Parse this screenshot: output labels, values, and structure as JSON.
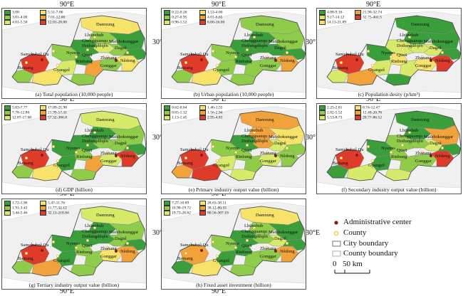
{
  "grid": {
    "lon_label": "90°E",
    "lat_label": "30°E"
  },
  "place_names": {
    "damxung": "Damxung",
    "lhunzhub": "Lhünzhub",
    "chengguan": "Chengguanqu",
    "maizho": "Maizhokunggar",
    "doilung": "Doilungdêqên",
    "dagze": "Dagzê",
    "samzhub": "Samzhubzê Qu",
    "nyemo": "Nyemo",
    "qusu": "Qüxü",
    "zhanang": "Zhanang",
    "nedong": "Nêdong",
    "rinbung": "Rinbung",
    "gonggar": "Gonggar",
    "bainang": "Bainang",
    "gyangze": "Gyangzê"
  },
  "panels": [
    {
      "caption": "(a) Total population (10,000 people)",
      "legend": [
        {
          "label": "3.00",
          "color": "#3a9e3a"
        },
        {
          "label": "3.01-4.00",
          "color": "#8fcc4a"
        },
        {
          "label": "4.01-5.50",
          "color": "#d8ea6a"
        },
        {
          "label": "5.51-7.00",
          "color": "#f7e36a"
        },
        {
          "label": "7.01-12.00",
          "color": "#f2a23a"
        },
        {
          "label": "12.01-28.00",
          "color": "#de3b2a"
        }
      ],
      "region_colors": {
        "damxung": 3,
        "lhunzhub": 1,
        "chengguan": 2,
        "maizho": 0,
        "doilung": 0,
        "dagze": 1,
        "samzhub": 5,
        "nyemo": 1,
        "qusu": 0,
        "zhanang": 1,
        "nedong": 3,
        "rinbung": 2,
        "gonggar": 4,
        "bainang": 1,
        "gyangze": 3,
        "east1": 0,
        "east2": 1
      }
    },
    {
      "caption": "(b) Urban population (10,000 people)",
      "legend": [
        {
          "label": "0.22-0.26",
          "color": "#3a9e3a"
        },
        {
          "label": "0.27-0.95",
          "color": "#8fcc4a"
        },
        {
          "label": "0.96-1.52",
          "color": "#d8ea6a"
        },
        {
          "label": "1.53-4.00",
          "color": "#f7e36a"
        },
        {
          "label": "4.01-6.65",
          "color": "#f2a23a"
        },
        {
          "label": "6.66-16.00",
          "color": "#de3b2a"
        }
      ],
      "region_colors": {
        "damxung": 1,
        "lhunzhub": 0,
        "chengguan": 0,
        "maizho": 1,
        "doilung": 0,
        "dagze": 0,
        "samzhub": 5,
        "nyemo": 1,
        "qusu": 0,
        "zhanang": 1,
        "nedong": 4,
        "rinbung": 1,
        "gonggar": 1,
        "bainang": 1,
        "gyangze": 3,
        "east1": 0,
        "east2": 1
      }
    },
    {
      "caption": "(c) Population desity (p/km²)",
      "legend": [
        {
          "label": "4.88-9.16",
          "color": "#3a9e3a"
        },
        {
          "label": "9.17-14.12",
          "color": "#d8ea6a"
        },
        {
          "label": "14.13-21.89",
          "color": "#f7e36a"
        },
        {
          "label": "21.90-32.74",
          "color": "#f2a23a"
        },
        {
          "label": "32.75-401.5",
          "color": "#de3b2a"
        }
      ],
      "region_colors": {
        "damxung": 0,
        "lhunzhub": 0,
        "chengguan": 1,
        "maizho": 0,
        "doilung": 1,
        "dagze": 1,
        "samzhub": 4,
        "nyemo": 0,
        "qusu": 2,
        "zhanang": 2,
        "nedong": 4,
        "rinbung": 1,
        "gonggar": 1,
        "bainang": 1,
        "gyangze": 3,
        "east1": 0,
        "east2": 0
      }
    },
    {
      "caption": "(d) GDP (billion)",
      "legend": [
        {
          "label": "5.03-7.77",
          "color": "#3a9e3a"
        },
        {
          "label": "7.78-12.86",
          "color": "#8fcc4a"
        },
        {
          "label": "12.87-17.08",
          "color": "#d8ea6a"
        },
        {
          "label": "17.09-21.98",
          "color": "#f7e36a"
        },
        {
          "label": "21.99-57.31",
          "color": "#f2a23a"
        },
        {
          "label": "57.32-306.8",
          "color": "#de3b2a"
        }
      ],
      "region_colors": {
        "damxung": 2,
        "lhunzhub": 0,
        "chengguan": 1,
        "maizho": 1,
        "doilung": 0,
        "dagze": 1,
        "samzhub": 5,
        "nyemo": 0,
        "qusu": 1,
        "zhanang": 2,
        "nedong": 5,
        "rinbung": 0,
        "gonggar": 4,
        "bainang": 1,
        "gyangze": 3,
        "east1": 0,
        "east2": 1
      }
    },
    {
      "caption": "(e) Primary industry output value (billion)",
      "legend": [
        {
          "label": "0.62-0.64",
          "color": "#3a9e3a"
        },
        {
          "label": "0.65-1.12",
          "color": "#8fcc4a"
        },
        {
          "label": "1.13-1.45",
          "color": "#d8ea6a"
        },
        {
          "label": "1.46-1.55",
          "color": "#f7e36a"
        },
        {
          "label": "1.56-2.94",
          "color": "#f2a23a"
        },
        {
          "label": "2.95-4.83",
          "color": "#de3b2a"
        }
      ],
      "region_colors": {
        "damxung": 4,
        "lhunzhub": 4,
        "chengguan": 4,
        "maizho": 3,
        "doilung": 0,
        "dagze": 2,
        "samzhub": 5,
        "nyemo": 1,
        "qusu": 1,
        "zhanang": 2,
        "nedong": 1,
        "rinbung": 2,
        "gonggar": 1,
        "bainang": 4,
        "gyangze": 5,
        "east1": 1,
        "east2": 2
      }
    },
    {
      "caption": "(f) Secondary industry output value (billion)",
      "legend": [
        {
          "label": "2.25-2.81",
          "color": "#3a9e3a"
        },
        {
          "label": "2.82-5.52",
          "color": "#8fcc4a"
        },
        {
          "label": "5.53-8.73",
          "color": "#d8ea6a"
        },
        {
          "label": "8.74-12.47",
          "color": "#f7e36a"
        },
        {
          "label": "12.48-20.76",
          "color": "#f2a23a"
        },
        {
          "label": "20.77-86.52",
          "color": "#de3b2a"
        }
      ],
      "region_colors": {
        "damxung": 0,
        "lhunzhub": 0,
        "chengguan": 1,
        "maizho": 4,
        "doilung": 1,
        "dagze": 2,
        "samzhub": 5,
        "nyemo": 0,
        "qusu": 1,
        "zhanang": 1,
        "nedong": 5,
        "rinbung": 0,
        "gonggar": 1,
        "bainang": 0,
        "gyangze": 2,
        "east1": 0,
        "east2": 2
      }
    },
    {
      "caption": "(g) Tertiary industry output value (billion)",
      "legend": [
        {
          "label": "1.72-1.90",
          "color": "#3a9e3a"
        },
        {
          "label": "1.91-3.43",
          "color": "#8fcc4a"
        },
        {
          "label": "3.44-5.46",
          "color": "#d8ea6a"
        },
        {
          "label": "5.47-11.76",
          "color": "#f7e36a"
        },
        {
          "label": "11.77-32.12",
          "color": "#f2a23a"
        },
        {
          "label": "32.13-218.84",
          "color": "#de3b2a"
        }
      ],
      "region_colors": {
        "damxung": 2,
        "lhunzhub": 0,
        "chengguan": 0,
        "maizho": 1,
        "doilung": 0,
        "dagze": 1,
        "samzhub": 5,
        "nyemo": 0,
        "qusu": 1,
        "zhanang": 3,
        "nedong": 4,
        "rinbung": 0,
        "gonggar": 1,
        "bainang": 1,
        "gyangze": 4,
        "east1": 0,
        "east2": 1
      }
    },
    {
      "caption": "(h) Fixed asset investment (billion)",
      "legend": [
        {
          "label": "7.27-10.89",
          "color": "#3a9e3a"
        },
        {
          "label": "10.90-19.72",
          "color": "#8fcc4a"
        },
        {
          "label": "19.73-28.62",
          "color": "#d8ea6a"
        },
        {
          "label": "28.63-38.11",
          "color": "#f7e36a"
        },
        {
          "label": "38.12-80.55",
          "color": "#f2a23a"
        },
        {
          "label": "80.56-307.18",
          "color": "#de3b2a"
        }
      ],
      "region_colors": {
        "damxung": 3,
        "lhunzhub": 1,
        "chengguan": 1,
        "maizho": 0,
        "doilung": 0,
        "dagze": 2,
        "samzhub": 4,
        "nyemo": 1,
        "qusu": 0,
        "zhanang": 1,
        "nedong": 4,
        "rinbung": 0,
        "gonggar": 1,
        "bainang": 0,
        "gyangze": 3,
        "east1": 0,
        "east2": 1
      }
    }
  ],
  "key_legend": {
    "admin_center": "Administrative center",
    "county": "County",
    "city_boundary": "City boundary",
    "county_boundary": "County boundary",
    "scale_zero": "0",
    "scale_label": "50 km",
    "admin_color": "#8b1a1a",
    "county_color": "#f1c232"
  }
}
